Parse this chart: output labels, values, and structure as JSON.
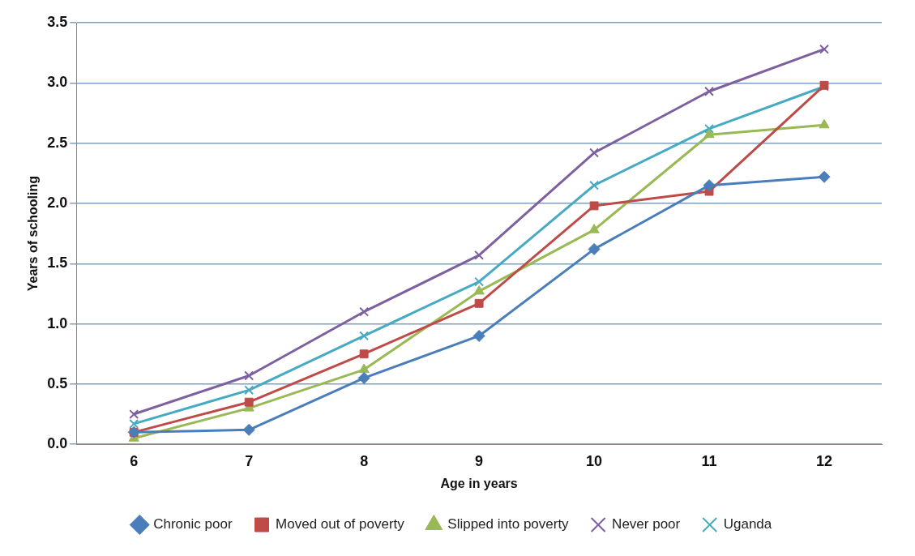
{
  "chart_data": {
    "type": "line",
    "xlabel": "Age in years",
    "ylabel": "Years of schooling",
    "categories": [
      "6",
      "7",
      "8",
      "9",
      "10",
      "11",
      "12"
    ],
    "ylim": [
      0,
      3.5
    ],
    "yticks": [
      {
        "value": 0,
        "label": "0.0"
      },
      0.5,
      {
        "value": 1,
        "label": "1.0"
      },
      1.5,
      {
        "value": 2,
        "label": "2.0"
      },
      2.5,
      {
        "value": 3,
        "label": "3.0"
      },
      3.5
    ],
    "grid": "y",
    "legend": "bottom",
    "line_style": "solid",
    "series": [
      {
        "name": "Chronic poor",
        "color": "#4a7ebb",
        "marker": "diamond",
        "values": [
          0.1,
          0.12,
          0.55,
          0.9,
          1.62,
          2.15,
          2.22
        ]
      },
      {
        "name": "Moved out of poverty",
        "color": "#be4b48",
        "marker": "square",
        "values": [
          0.1,
          0.35,
          0.75,
          1.17,
          1.98,
          2.1,
          2.98
        ]
      },
      {
        "name": "Slipped into poverty",
        "color": "#98b954",
        "marker": "triangle",
        "values": [
          0.05,
          0.3,
          0.62,
          1.27,
          1.78,
          2.57,
          2.65
        ]
      },
      {
        "name": "Never poor",
        "color": "#7d60a0",
        "marker": "cross",
        "values": [
          0.25,
          0.57,
          1.1,
          1.57,
          2.42,
          2.93,
          3.28
        ]
      },
      {
        "name": "Uganda",
        "color": "#46aac5",
        "marker": "cross",
        "values": [
          0.17,
          0.45,
          0.9,
          1.35,
          2.15,
          2.62,
          2.97
        ]
      }
    ]
  }
}
